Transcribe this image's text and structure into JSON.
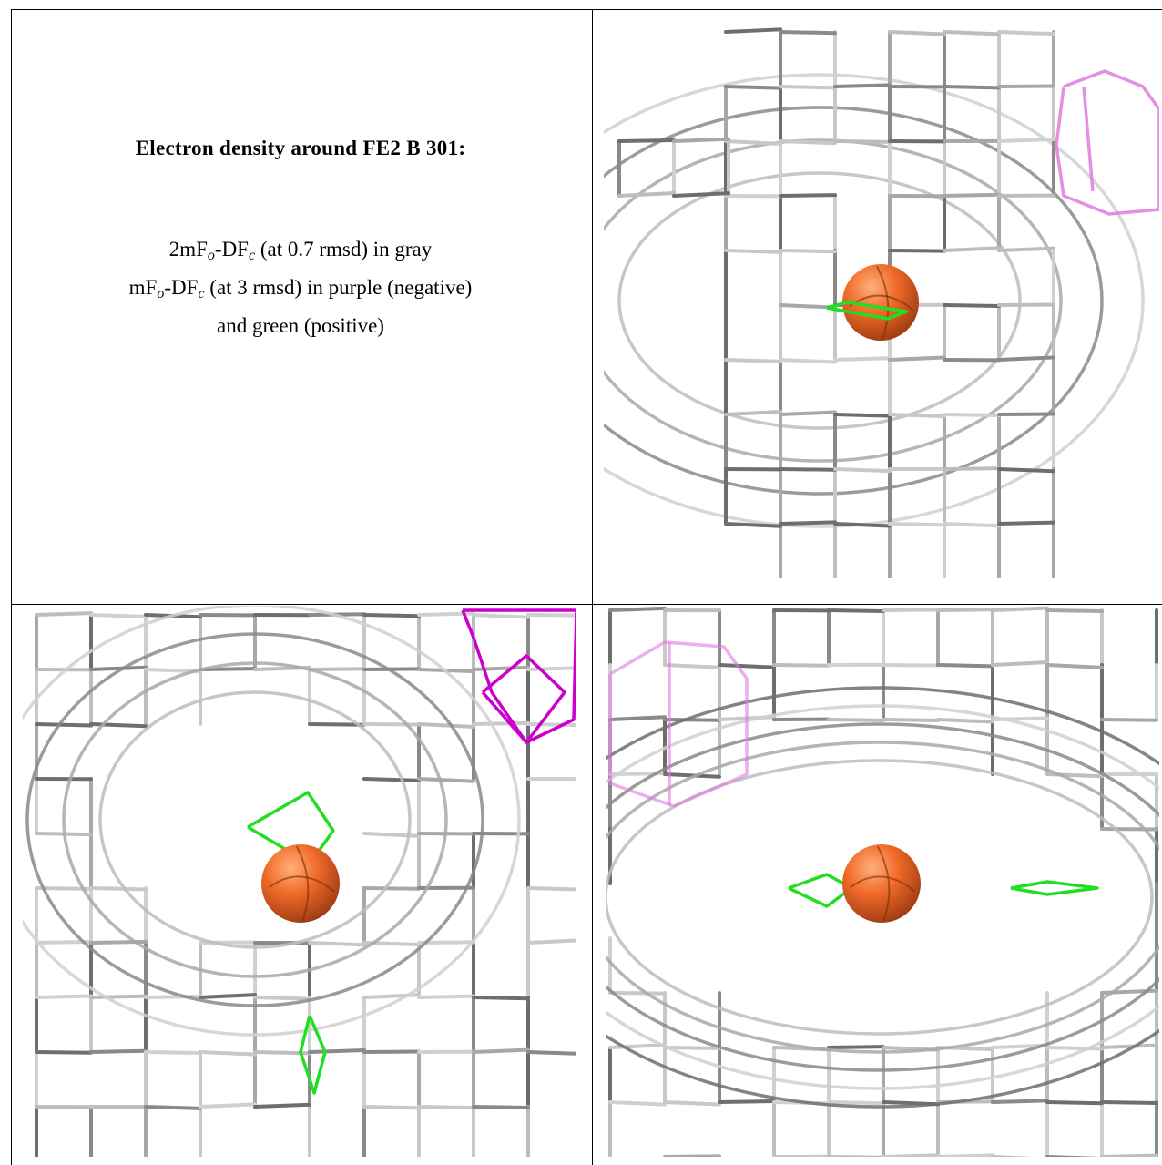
{
  "caption": {
    "title": "Electron density around FE2 B 301:",
    "lines": [
      [
        "2mF",
        "o",
        "-DF",
        "c",
        " (at 0.7 rmsd) in gray"
      ],
      [
        "mF",
        "o",
        "-DF",
        "c",
        " (at 3 rmsd) in purple (negative)"
      ],
      [
        "and green (positive)"
      ]
    ]
  }
}
